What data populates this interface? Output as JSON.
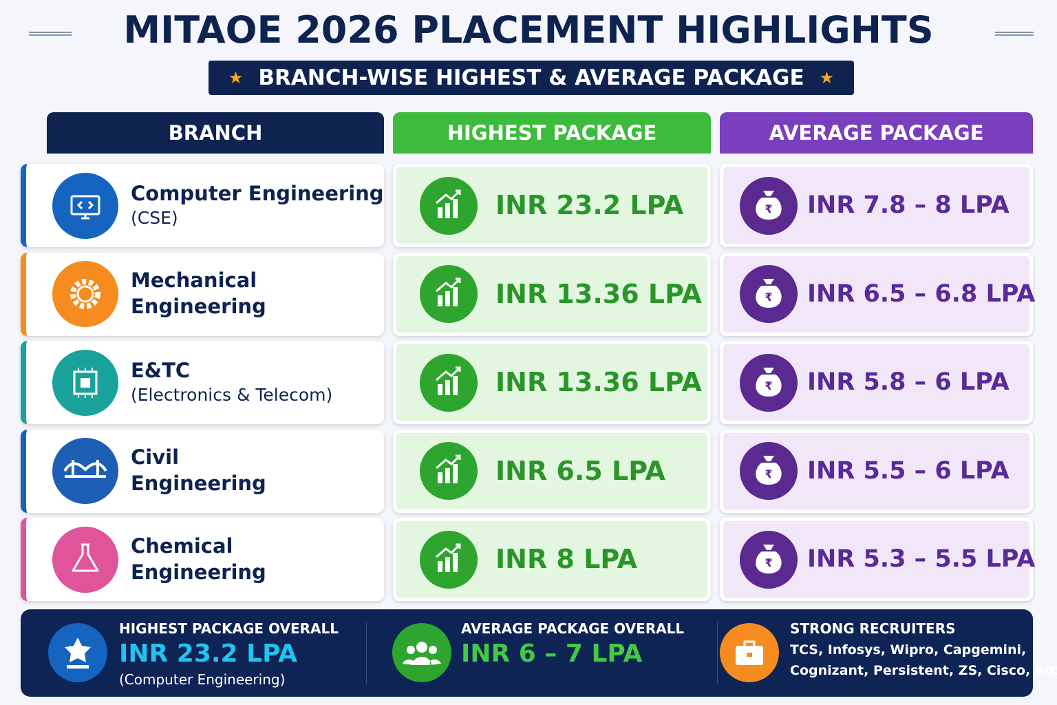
{
  "header": {
    "title": "MITAOE 2026 PLACEMENT HIGHLIGHTS",
    "subtitle": "BRANCH-WISE HIGHEST & AVERAGE PACKAGE"
  },
  "table": {
    "headers": [
      "BRANCH",
      "HIGHEST PACKAGE",
      "AVERAGE PACKAGE"
    ],
    "rows": [
      {
        "branch": [
          "Computer Engineering",
          "(CSE)"
        ],
        "highest": "INR 23.2 LPA",
        "average": "INR 7.8 – 8 LPA"
      },
      {
        "branch": [
          "Mechanical",
          "Engineering"
        ],
        "highest": "INR 13.36 LPA",
        "average": "INR 6.5 – 6.8 LPA"
      },
      {
        "branch": [
          "E&TC",
          "(Electronics & Telecom)"
        ],
        "highest": "INR 13.36 LPA",
        "average": "INR 5.8 – 6 LPA"
      },
      {
        "branch": [
          "Civil",
          "Engineering"
        ],
        "highest": "INR 6.5 LPA",
        "average": "INR 5.5 – 6 LPA"
      },
      {
        "branch": [
          "Chemical",
          "Engineering"
        ],
        "highest": "INR 8 LPA",
        "average": "INR 5.3 – 5.5 LPA"
      }
    ]
  },
  "footer": {
    "items": [
      {
        "label": "HIGHEST PACKAGE OVERALL",
        "value": "INR 23.2 LPA",
        "note": "(Computer Engineering)"
      },
      {
        "label": "AVERAGE PACKAGE OVERALL",
        "value": "INR 6 – 7 LPA"
      },
      {
        "label": "STRONG RECRUITERS",
        "lines": [
          "TCS, Infosys, Wipro, Capgemini,",
          "Cognizant, Persistent, ZS, Cisco, etc."
        ]
      }
    ]
  }
}
